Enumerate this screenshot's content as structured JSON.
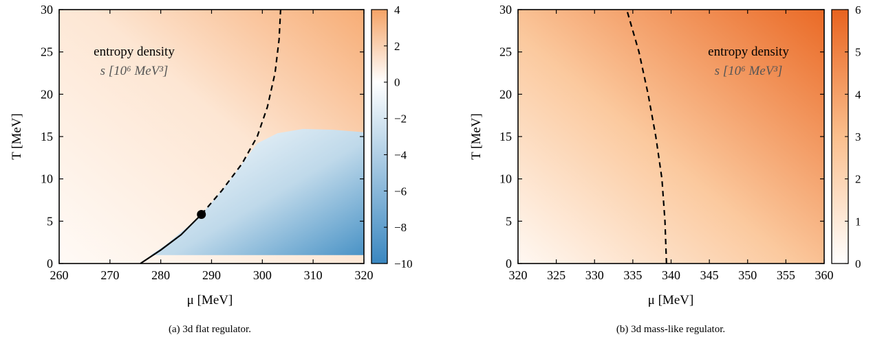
{
  "chart_data": [
    {
      "type": "heatmap",
      "caption": "(a) 3d flat regulator.",
      "xlabel": "μ [MeV]",
      "ylabel": "T [MeV]",
      "xlim": [
        260,
        320
      ],
      "ylim": [
        0,
        30
      ],
      "xticks": [
        260,
        270,
        280,
        290,
        300,
        310,
        320
      ],
      "yticks": [
        0,
        5,
        10,
        15,
        20,
        25,
        30
      ],
      "annotation": {
        "title": "entropy density",
        "quantity": "s [10⁶ MeV³]"
      },
      "colorbar": {
        "range": [
          -10,
          4
        ],
        "ticks": [
          4,
          2,
          0,
          -2,
          -4,
          -6,
          -8,
          -10
        ],
        "negative_color": "#3a87c0",
        "zero_color": "#ffffff",
        "positive_color": "#f5a366"
      },
      "first_order_line": [
        [
          276.0,
          0
        ],
        [
          280,
          1.6
        ],
        [
          284,
          3.4
        ],
        [
          288,
          5.8
        ]
      ],
      "crossover_line": [
        [
          288,
          5.8
        ],
        [
          292,
          8.6
        ],
        [
          296,
          11.8
        ],
        [
          299,
          15.0
        ],
        [
          301,
          18.5
        ],
        [
          302.5,
          22.5
        ],
        [
          303.3,
          26.5
        ],
        [
          303.6,
          30
        ]
      ],
      "critical_endpoint": [
        288,
        5.8
      ]
    },
    {
      "type": "heatmap",
      "caption": "(b) 3d mass-like regulator.",
      "xlabel": "μ [MeV]",
      "ylabel": "T [MeV]",
      "xlim": [
        320,
        360
      ],
      "ylim": [
        0,
        30
      ],
      "xticks": [
        320,
        325,
        330,
        335,
        340,
        345,
        350,
        355,
        360
      ],
      "yticks": [
        0,
        5,
        10,
        15,
        20,
        25,
        30
      ],
      "annotation": {
        "title": "entropy density",
        "quantity": "s [10⁶ MeV³]"
      },
      "colorbar": {
        "range": [
          0,
          6
        ],
        "ticks": [
          6,
          5,
          4,
          3,
          2,
          1,
          0
        ],
        "low_color": "#ffffff",
        "high_color": "#e8631f"
      },
      "crossover_line": [
        [
          339.4,
          0
        ],
        [
          339.2,
          5
        ],
        [
          338.8,
          10
        ],
        [
          338.0,
          15
        ],
        [
          337.0,
          20
        ],
        [
          335.8,
          25
        ],
        [
          334.2,
          30
        ]
      ]
    }
  ]
}
